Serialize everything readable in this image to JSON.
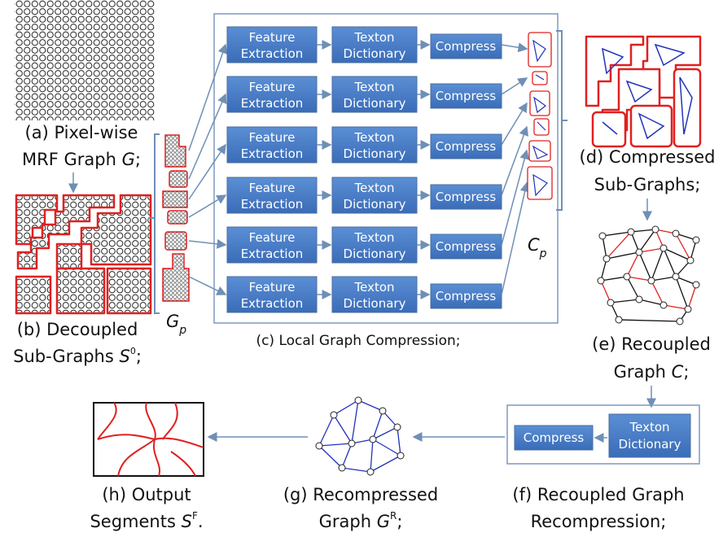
{
  "a": {
    "line1": "(a) Pixel-wise",
    "line2": [
      "MRF Graph ",
      "G",
      ";"
    ]
  },
  "b": {
    "line1": "(b) Decoupled",
    "line2": [
      "Sub-Graphs ",
      "S",
      "0",
      ";"
    ]
  },
  "gp": [
    "G",
    "p"
  ],
  "pipeline": {
    "rows": [
      {
        "feature": [
          "Feature",
          "Extraction"
        ],
        "texton": [
          "Texton",
          "Dictionary"
        ],
        "compress": "Compress"
      },
      {
        "feature": [
          "Feature",
          "Extraction"
        ],
        "texton": [
          "Texton",
          "Dictionary"
        ],
        "compress": "Compress"
      },
      {
        "feature": [
          "Feature",
          "Extraction"
        ],
        "texton": [
          "Texton",
          "Dictionary"
        ],
        "compress": "Compress"
      },
      {
        "feature": [
          "Feature",
          "Extraction"
        ],
        "texton": [
          "Texton",
          "Dictionary"
        ],
        "compress": "Compress"
      },
      {
        "feature": [
          "Feature",
          "Extraction"
        ],
        "texton": [
          "Texton",
          "Dictionary"
        ],
        "compress": "Compress"
      },
      {
        "feature": [
          "Feature",
          "Extraction"
        ],
        "texton": [
          "Texton",
          "Dictionary"
        ],
        "compress": "Compress"
      }
    ],
    "caption": "(c) Local Graph Compression;"
  },
  "cp": [
    "C",
    "p"
  ],
  "d": {
    "line1": "(d) Compressed",
    "line2": "Sub-Graphs;"
  },
  "e": {
    "line1": "(e) Recoupled",
    "line2": [
      "Graph ",
      "C",
      ";"
    ]
  },
  "f": {
    "compress": "Compress",
    "texton": [
      "Texton",
      "Dictionary"
    ],
    "line1": "(f) Recoupled Graph",
    "line2": "Recompression;"
  },
  "g": {
    "line1": "(g) Recompressed",
    "line2": [
      "Graph ",
      "G",
      "R",
      ";"
    ]
  },
  "h": {
    "line1": "(h) Output",
    "line2": [
      "Segments ",
      "S",
      "F",
      "."
    ]
  }
}
